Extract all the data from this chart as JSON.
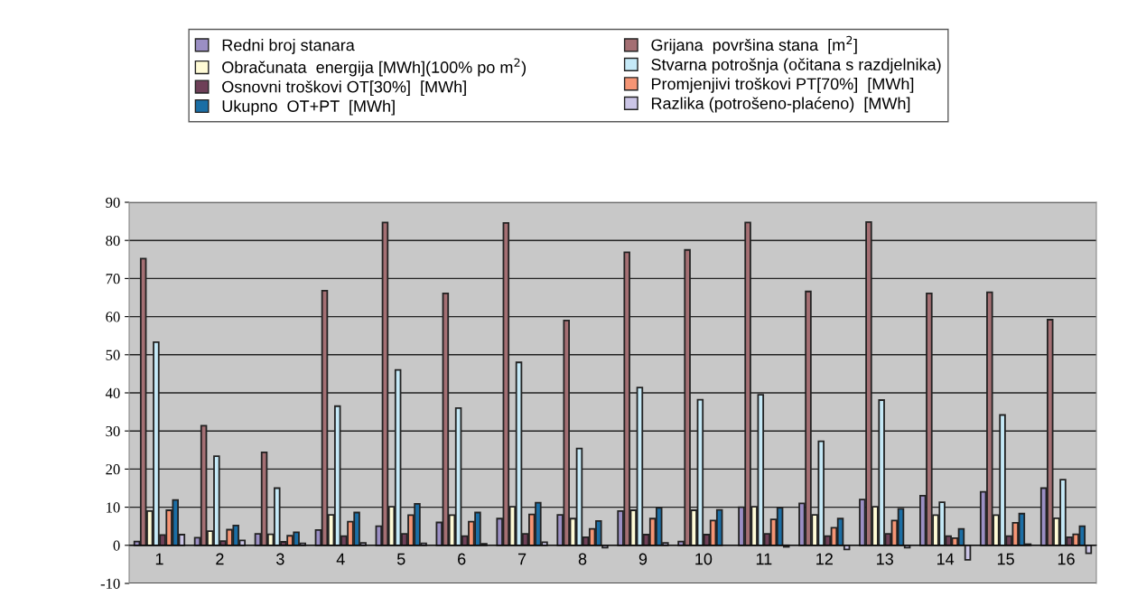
{
  "chart_data": {
    "type": "bar",
    "categories": [
      "1",
      "2",
      "3",
      "4",
      "5",
      "6",
      "7",
      "8",
      "9",
      "10",
      "11",
      "12",
      "13",
      "14",
      "15",
      "16"
    ],
    "series": [
      {
        "name": "Redni broj stanara",
        "color": "#9b8fc4",
        "values": [
          1,
          2,
          3,
          4,
          5,
          6,
          7,
          8,
          9,
          1,
          10,
          11,
          12,
          13,
          14,
          15
        ]
      },
      {
        "name": "Grijana  površina stana  [m$^{2}$]",
        "color": "#a46f73",
        "values": [
          75.2,
          31.4,
          24.4,
          66.8,
          84.7,
          66.1,
          84.6,
          59,
          76.9,
          77.5,
          84.7,
          66.6,
          84.8,
          66.1,
          66.4,
          59.2
        ]
      },
      {
        "name": "Obračunata  energija [MWh](100% po m$^{2}$)",
        "color": "#fffbd6",
        "values": [
          9,
          3.7,
          2.9,
          8,
          10.1,
          7.9,
          10.1,
          7,
          9.2,
          9.2,
          10.1,
          8,
          10.1,
          7.9,
          7.9,
          7.1
        ]
      },
      {
        "name": "Stvarna potrošnja (očitana s razdjelnika)",
        "color": "#c5e9f7",
        "values": [
          53.3,
          23.4,
          15,
          36.5,
          46,
          36,
          48,
          25.4,
          41.4,
          38.2,
          39.5,
          27.3,
          38.1,
          11.3,
          34.2,
          17.2
        ]
      },
      {
        "name": "Osnovni troškovi OT[30%]  [MWh]",
        "color": "#6e4058",
        "values": [
          2.7,
          1.1,
          0.9,
          2.4,
          3,
          2.4,
          3,
          2.1,
          2.8,
          2.8,
          3,
          2.4,
          3,
          2.4,
          2.4,
          2.1
        ]
      },
      {
        "name": "Promjenjivi troškovi PT[70%]  [MWh]",
        "color": "#f59575",
        "values": [
          9.2,
          4.1,
          2.5,
          6.2,
          7.9,
          6.2,
          8.1,
          4.3,
          7,
          6.5,
          6.8,
          4.6,
          6.5,
          1.9,
          5.9,
          2.9
        ]
      },
      {
        "name": "Ukupno  OT+PT  [MWh]",
        "color": "#1b6ea5",
        "values": [
          11.9,
          5.2,
          3.4,
          8.6,
          10.9,
          8.6,
          11.2,
          6.4,
          9.8,
          9.3,
          9.8,
          7,
          9.6,
          4.3,
          8.3,
          5
        ]
      },
      {
        "name": "Razlika (potrošeno-plaćeno)  [MWh]",
        "color": "#cbc5e6",
        "values": [
          2.8,
          1.3,
          0.5,
          0.6,
          0.5,
          0.4,
          0.8,
          -0.6,
          0.6,
          null,
          -0.4,
          -1.1,
          -0.6,
          -3.8,
          0.3,
          -2.1
        ]
      }
    ],
    "ylim": [
      -10,
      90
    ],
    "yticks": [
      -10,
      0,
      10,
      20,
      30,
      40,
      50,
      60,
      70,
      80,
      90
    ],
    "grid": "y",
    "legend": "top"
  }
}
